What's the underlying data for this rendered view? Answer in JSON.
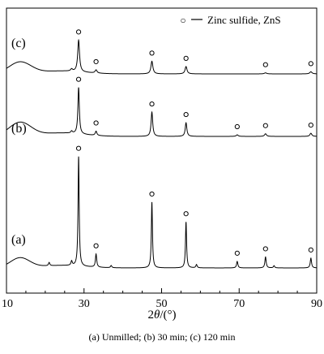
{
  "chart_data": {
    "type": "line",
    "xlabel_prefix": "2",
    "xlabel_theta": "θ",
    "xlabel_suffix": "/(°)",
    "xlim": [
      10,
      90
    ],
    "xticks": [
      "10",
      "30",
      "50",
      "70",
      "90"
    ],
    "legend": {
      "marker": "○",
      "label": "Zinc sulfide, ZnS"
    },
    "caption": "(a) Unmilled; (b) 30 min; (c) 120 min",
    "series": [
      {
        "name": "(a)",
        "baseline": 0.0,
        "hump": {
          "center": 13.5,
          "height": 0.09,
          "width": 3.5
        },
        "peaks": [
          {
            "x": 21.0,
            "h": 0.03,
            "w": 0.2
          },
          {
            "x": 26.8,
            "h": 0.04,
            "w": 0.2
          },
          {
            "x": 28.6,
            "h": 1.0,
            "w": 0.17
          },
          {
            "x": 33.1,
            "h": 0.12,
            "w": 0.2
          },
          {
            "x": 37.0,
            "h": 0.02,
            "w": 0.2
          },
          {
            "x": 47.5,
            "h": 0.6,
            "w": 0.17
          },
          {
            "x": 56.3,
            "h": 0.42,
            "w": 0.17
          },
          {
            "x": 59.0,
            "h": 0.03,
            "w": 0.2
          },
          {
            "x": 69.5,
            "h": 0.06,
            "w": 0.2
          },
          {
            "x": 76.8,
            "h": 0.1,
            "w": 0.2
          },
          {
            "x": 79.0,
            "h": 0.02,
            "w": 0.2
          },
          {
            "x": 88.5,
            "h": 0.09,
            "w": 0.2
          }
        ],
        "markers": [
          28.6,
          33.1,
          47.5,
          56.3,
          69.5,
          76.8,
          88.5
        ]
      },
      {
        "name": "(b)",
        "baseline": 1.0,
        "hump": {
          "center": 13.5,
          "height": 0.13,
          "width": 4.0
        },
        "peaks": [
          {
            "x": 26.8,
            "h": 0.02,
            "w": 0.25
          },
          {
            "x": 28.6,
            "h": 0.44,
            "w": 0.22
          },
          {
            "x": 33.1,
            "h": 0.04,
            "w": 0.25
          },
          {
            "x": 47.5,
            "h": 0.23,
            "w": 0.25
          },
          {
            "x": 56.3,
            "h": 0.13,
            "w": 0.25
          },
          {
            "x": 69.5,
            "h": 0.015,
            "w": 0.3
          },
          {
            "x": 76.8,
            "h": 0.025,
            "w": 0.3
          },
          {
            "x": 88.5,
            "h": 0.03,
            "w": 0.3
          }
        ],
        "markers": [
          28.6,
          33.1,
          47.5,
          56.3,
          69.5,
          76.8,
          88.5
        ]
      },
      {
        "name": "(c)",
        "baseline": 1.55,
        "hump": {
          "center": 13.5,
          "height": 0.11,
          "width": 4.0
        },
        "peaks": [
          {
            "x": 26.8,
            "h": 0.02,
            "w": 0.3
          },
          {
            "x": 28.6,
            "h": 0.3,
            "w": 0.28
          },
          {
            "x": 33.1,
            "h": 0.03,
            "w": 0.3
          },
          {
            "x": 47.5,
            "h": 0.12,
            "w": 0.3
          },
          {
            "x": 56.3,
            "h": 0.07,
            "w": 0.3
          },
          {
            "x": 76.8,
            "h": 0.01,
            "w": 0.35
          },
          {
            "x": 88.5,
            "h": 0.02,
            "w": 0.35
          }
        ],
        "markers": [
          28.6,
          33.1,
          47.5,
          56.3,
          76.8,
          88.5
        ]
      }
    ]
  }
}
